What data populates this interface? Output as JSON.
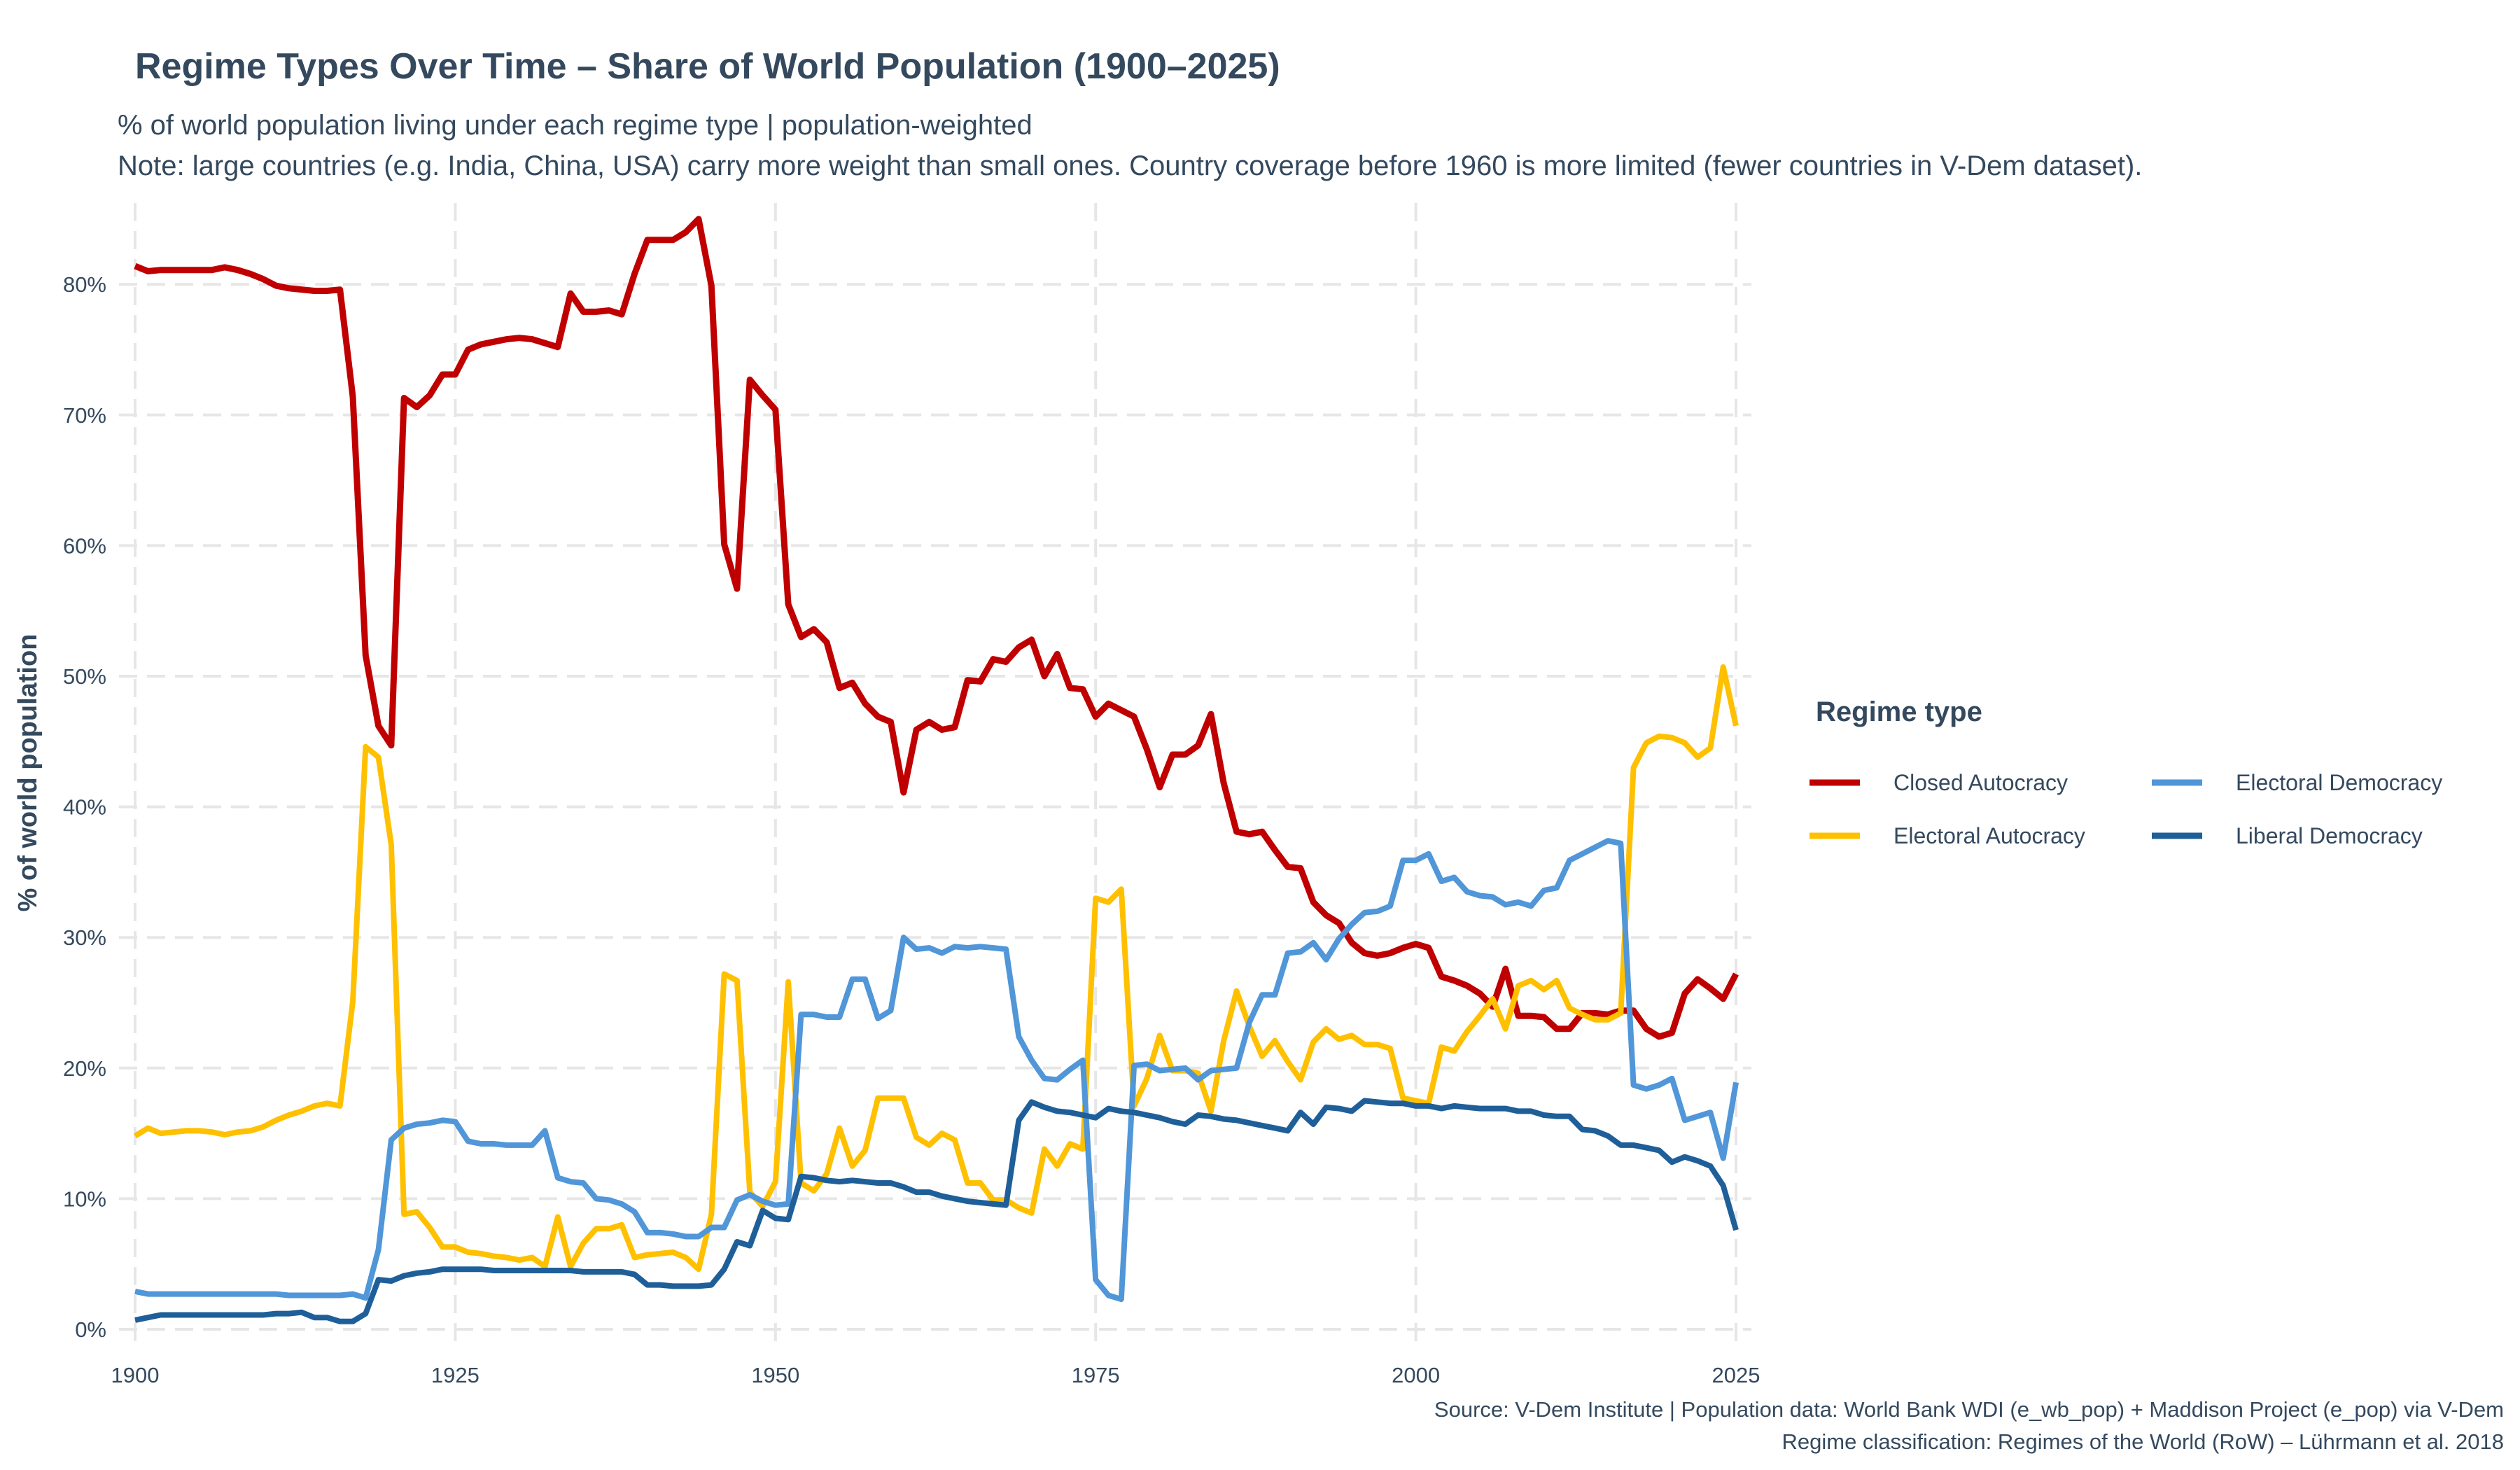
{
  "title": "Regime Types Over Time – Share of World Population (1900–2025)",
  "subtitle_line1": "% of world population living under each regime type  |  population-weighted",
  "subtitle_line2": "Note: large countries (e.g. India, China, USA) carry more weight than small ones.  Country coverage before 1960 is more limited (fewer countries in V-Dem dataset).",
  "caption_line1": "Source: V-Dem Institute  |  Population data: World Bank WDI (e_wb_pop) + Maddison Project (e_pop) via V-Dem",
  "caption_line2": "Regime classification: Regimes of the World (RoW) – Lührmann et al. 2018",
  "chart_data": {
    "type": "line",
    "xlabel": "",
    "ylabel": "% of world population",
    "xlim": [
      1900,
      2025
    ],
    "ylim": [
      0,
      85
    ],
    "x_ticks": [
      "1900",
      "1925",
      "1950",
      "1975",
      "2000",
      "2025"
    ],
    "y_ticks": [
      "0%",
      "10%",
      "20%",
      "30%",
      "40%",
      "50%",
      "60%",
      "70%",
      "80%"
    ],
    "grid": true,
    "legend_title": "Regime type",
    "legend_position": "right",
    "x_start": 1900,
    "series": [
      {
        "name": "Closed Autocracy",
        "color": "#C00000",
        "values": [
          81.4,
          81.0,
          81.1,
          81.1,
          81.1,
          81.1,
          81.1,
          81.3,
          81.1,
          80.8,
          80.4,
          79.9,
          79.7,
          79.6,
          79.5,
          79.5,
          79.6,
          71.4,
          51.6,
          46.2,
          44.7,
          71.3,
          70.6,
          71.5,
          73.1,
          73.1,
          75.0,
          75.4,
          75.6,
          75.8,
          75.9,
          75.8,
          75.5,
          75.2,
          79.3,
          77.9,
          77.9,
          78.0,
          77.7,
          80.8,
          83.4,
          83.4,
          83.4,
          84.0,
          85.0,
          79.9,
          60.1,
          56.7,
          72.7,
          71.5,
          70.4,
          55.5,
          53.0,
          53.6,
          52.6,
          49.1,
          49.5,
          47.9,
          46.9,
          46.5,
          41.1,
          45.9,
          46.5,
          45.9,
          46.1,
          49.7,
          49.6,
          51.3,
          51.1,
          52.2,
          52.8,
          50.0,
          51.7,
          49.1,
          49.0,
          46.9,
          47.9,
          47.4,
          46.9,
          44.4,
          41.5,
          44.0,
          44.0,
          44.7,
          47.1,
          41.8,
          38.1,
          37.9,
          38.1,
          36.7,
          35.4,
          35.3,
          32.7,
          31.7,
          31.1,
          29.6,
          28.8,
          28.6,
          28.8,
          29.2,
          29.5,
          29.2,
          27.0,
          26.7,
          26.3,
          25.7,
          24.7,
          27.6,
          24.0,
          24.0,
          23.9,
          23.0,
          23.0,
          24.2,
          24.2,
          24.1,
          24.4,
          24.4,
          23.0,
          22.4,
          22.7,
          25.7,
          26.8,
          26.1,
          25.3,
          27.2
        ]
      },
      {
        "name": "Electoral Autocracy",
        "color": "#FFC000",
        "values": [
          14.8,
          15.4,
          15.0,
          15.1,
          15.2,
          15.2,
          15.1,
          14.9,
          15.1,
          15.2,
          15.5,
          16.0,
          16.4,
          16.7,
          17.1,
          17.3,
          17.1,
          25.1,
          44.6,
          43.8,
          37.1,
          8.8,
          9.0,
          7.8,
          6.3,
          6.3,
          5.9,
          5.8,
          5.6,
          5.5,
          5.3,
          5.5,
          4.8,
          8.6,
          4.8,
          6.6,
          7.7,
          7.7,
          8.0,
          5.5,
          5.7,
          5.8,
          5.9,
          5.5,
          4.6,
          8.8,
          27.2,
          26.7,
          10.5,
          9.4,
          11.3,
          26.6,
          11.2,
          10.6,
          11.9,
          15.4,
          12.5,
          13.7,
          17.7,
          17.7,
          17.7,
          14.7,
          14.1,
          15.0,
          14.5,
          11.2,
          11.2,
          9.9,
          9.9,
          9.3,
          8.9,
          13.8,
          12.5,
          14.2,
          13.8,
          33.0,
          32.7,
          33.7,
          17.1,
          19.2,
          22.5,
          19.8,
          19.8,
          19.6,
          16.7,
          22.1,
          25.9,
          23.2,
          20.9,
          22.1,
          20.5,
          19.1,
          22.0,
          23.0,
          22.2,
          22.5,
          21.8,
          21.8,
          21.5,
          17.7,
          17.5,
          17.3,
          21.6,
          21.3,
          22.8,
          24.0,
          25.3,
          23.0,
          26.3,
          26.7,
          26.0,
          26.7,
          24.6,
          24.1,
          23.7,
          23.7,
          24.2,
          43.0,
          44.9,
          45.4,
          45.3,
          44.9,
          43.8,
          44.5,
          50.7,
          46.2
        ]
      },
      {
        "name": "Electoral Democracy",
        "color": "#5096D8",
        "values": [
          2.9,
          2.7,
          2.7,
          2.7,
          2.7,
          2.7,
          2.7,
          2.7,
          2.7,
          2.7,
          2.7,
          2.7,
          2.6,
          2.6,
          2.6,
          2.6,
          2.6,
          2.7,
          2.4,
          6.1,
          14.5,
          15.4,
          15.7,
          15.8,
          16.0,
          15.9,
          14.4,
          14.2,
          14.2,
          14.1,
          14.1,
          14.1,
          15.2,
          11.6,
          11.3,
          11.2,
          10.0,
          9.9,
          9.6,
          9.0,
          7.4,
          7.4,
          7.3,
          7.1,
          7.1,
          7.8,
          7.8,
          9.9,
          10.3,
          9.8,
          9.5,
          9.6,
          24.1,
          24.1,
          23.9,
          23.9,
          26.8,
          26.8,
          23.8,
          24.4,
          30.0,
          29.1,
          29.2,
          28.8,
          29.3,
          29.2,
          29.3,
          29.2,
          29.1,
          22.4,
          20.6,
          19.2,
          19.1,
          19.9,
          20.6,
          3.8,
          2.6,
          2.3,
          20.2,
          20.3,
          19.8,
          19.9,
          20.0,
          19.1,
          19.8,
          19.9,
          20.0,
          23.5,
          25.6,
          25.6,
          28.8,
          28.9,
          29.6,
          28.3,
          29.9,
          31.0,
          31.9,
          32.0,
          32.4,
          35.9,
          35.9,
          36.4,
          34.3,
          34.6,
          33.5,
          33.2,
          33.1,
          32.5,
          32.7,
          32.4,
          33.6,
          33.8,
          35.9,
          36.4,
          36.9,
          37.4,
          37.2,
          18.7,
          18.4,
          18.7,
          19.2,
          16.0,
          16.3,
          16.6,
          13.1,
          18.9
        ]
      },
      {
        "name": "Liberal Democracy",
        "color": "#1F5F99",
        "values": [
          0.7,
          0.9,
          1.1,
          1.1,
          1.1,
          1.1,
          1.1,
          1.1,
          1.1,
          1.1,
          1.1,
          1.2,
          1.2,
          1.3,
          0.9,
          0.9,
          0.6,
          0.6,
          1.2,
          3.8,
          3.7,
          4.1,
          4.3,
          4.4,
          4.6,
          4.6,
          4.6,
          4.6,
          4.5,
          4.5,
          4.5,
          4.5,
          4.5,
          4.5,
          4.5,
          4.4,
          4.4,
          4.4,
          4.4,
          4.2,
          3.4,
          3.4,
          3.3,
          3.3,
          3.3,
          3.4,
          4.6,
          6.7,
          6.4,
          9.1,
          8.5,
          8.4,
          11.7,
          11.6,
          11.4,
          11.3,
          11.4,
          11.3,
          11.2,
          11.2,
          10.9,
          10.5,
          10.5,
          10.2,
          10.0,
          9.8,
          9.7,
          9.6,
          9.5,
          16.0,
          17.4,
          17.0,
          16.7,
          16.6,
          16.4,
          16.2,
          16.9,
          16.7,
          16.6,
          16.4,
          16.2,
          15.9,
          15.7,
          16.4,
          16.3,
          16.1,
          16.0,
          15.8,
          15.6,
          15.4,
          15.2,
          16.6,
          15.7,
          17.0,
          16.9,
          16.7,
          17.5,
          17.4,
          17.3,
          17.3,
          17.1,
          17.1,
          16.9,
          17.1,
          17.0,
          16.9,
          16.9,
          16.9,
          16.7,
          16.7,
          16.4,
          16.3,
          16.3,
          15.3,
          15.2,
          14.8,
          14.1,
          14.1,
          13.9,
          13.7,
          12.8,
          13.2,
          12.9,
          12.5,
          11.0,
          7.6
        ]
      }
    ]
  }
}
